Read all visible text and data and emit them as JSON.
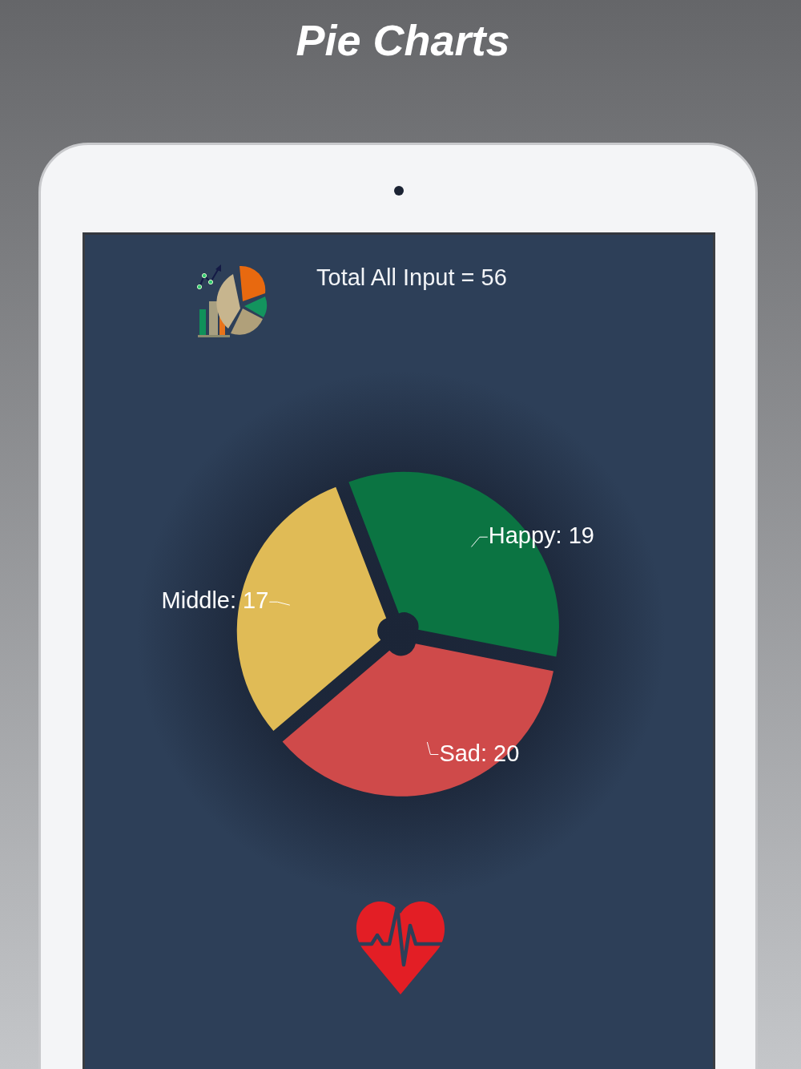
{
  "chart_data": {
    "type": "pie",
    "title": "Pie Charts",
    "subtitle": "Total All Input = 56",
    "categories": [
      null,
      null,
      null
    ],
    "values": [
      19,
      20,
      17
    ],
    "colors": [
      "#0b7442",
      "#cf4a4a",
      "#e0bb56"
    ],
    "value_labels": [
      "Happy: 19",
      "Sad: 20",
      "Middle: 17"
    ]
  }
}
